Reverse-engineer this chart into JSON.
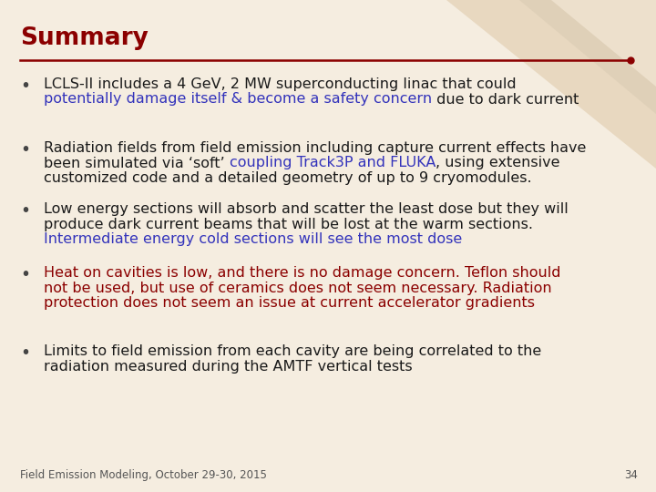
{
  "title": "Summary",
  "title_color": "#8B0000",
  "title_fontsize": 19,
  "bg_color": "#F5EDE0",
  "line_color": "#8B0000",
  "footer_text": "Field Emission Modeling, October 29-30, 2015",
  "footer_page": "34",
  "bullet_fontsize": 11.5,
  "dark_text": "#1a1a1a",
  "blue_text": "#3333BB",
  "red_text": "#8B0000",
  "bullets": [
    {
      "lines": [
        [
          {
            "text": "LCLS-II includes a 4 GeV, 2 MW superconducting linac that could",
            "color": "#1a1a1a"
          }
        ],
        [
          {
            "text": "potentially damage itself & become a safety concern",
            "color": "#3333BB"
          },
          {
            "text": " due to dark current",
            "color": "#1a1a1a"
          }
        ]
      ]
    },
    {
      "lines": [
        [
          {
            "text": "Radiation fields from field emission including capture current effects have",
            "color": "#1a1a1a"
          }
        ],
        [
          {
            "text": "been simulated via ‘soft’ ",
            "color": "#1a1a1a"
          },
          {
            "text": "coupling Track3P and FLUKA",
            "color": "#3333BB"
          },
          {
            "text": ", using extensive",
            "color": "#1a1a1a"
          }
        ],
        [
          {
            "text": "customized code and a detailed geometry of up to 9 cryomodules.",
            "color": "#1a1a1a"
          }
        ]
      ]
    },
    {
      "lines": [
        [
          {
            "text": "Low energy sections will absorb and scatter the least dose but they will",
            "color": "#1a1a1a"
          }
        ],
        [
          {
            "text": "produce dark current beams that will be lost at the warm sections.",
            "color": "#1a1a1a"
          }
        ],
        [
          {
            "text": "Intermediate energy cold sections will see the most dose",
            "color": "#3333BB"
          }
        ]
      ]
    },
    {
      "lines": [
        [
          {
            "text": "Heat on cavities is low, and there is no damage concern. Teflon should",
            "color": "#8B0000"
          }
        ],
        [
          {
            "text": "not be used, but use of ceramics does not seem necessary. Radiation",
            "color": "#8B0000"
          }
        ],
        [
          {
            "text": "protection does not seem an issue at current accelerator gradients",
            "color": "#8B0000"
          }
        ]
      ]
    },
    {
      "lines": [
        [
          {
            "text": "Limits to field emission from each cavity are being correlated to the",
            "color": "#1a1a1a"
          }
        ],
        [
          {
            "text": "radiation measured during the AMTF vertical tests",
            "color": "#1a1a1a"
          }
        ]
      ]
    }
  ]
}
